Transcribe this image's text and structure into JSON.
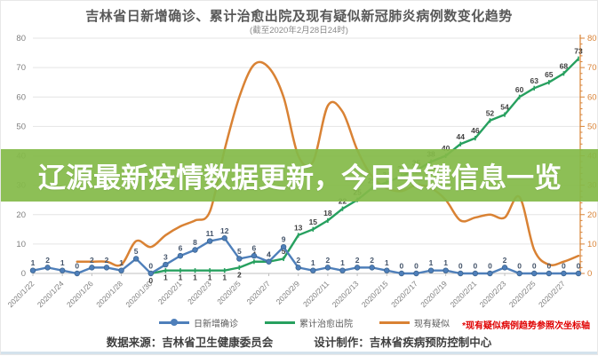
{
  "header": {
    "title": "吉林省日新增确诊、累计治愈出院及现有疑似新冠肺炎病例数变化趋势",
    "subtitle": "(截至2020年2月28日24时)"
  },
  "banner": {
    "text": "辽源最新疫情数据更新，今日关键信息一览",
    "bg": "rgba(132,186,73,0.93)"
  },
  "legend": {
    "items": [
      {
        "label": "日新增确诊",
        "color": "#4e7fba",
        "marker": "line-dot"
      },
      {
        "label": "累计治愈出院",
        "color": "#27a05f",
        "marker": "line"
      },
      {
        "label": "现有疑似",
        "color": "#d98234",
        "marker": "line"
      }
    ],
    "note": "*现有疑似病例趋势参照次坐标轴",
    "note_color": "#e00000"
  },
  "footer": {
    "source": "数据来源：吉林省卫生健康委员会",
    "design": "设计制作：吉林省疾病预防控制中心"
  },
  "chart_data": {
    "type": "line",
    "title": "吉林省日新增确诊、累计治愈出院及现有疑似新冠肺炎病例数变化趋势",
    "subtitle": "(截至2020年2月28日24时)",
    "x": [
      "2020/1/22",
      "2020/1/23",
      "2020/1/24",
      "2020/1/25",
      "2020/1/26",
      "2020/1/27",
      "2020/1/28",
      "2020/1/29",
      "2020/1/30",
      "2020/1/31",
      "2020/2/1",
      "2020/2/2",
      "2020/2/3",
      "2020/2/4",
      "2020/2/5",
      "2020/2/6",
      "2020/2/7",
      "2020/2/8",
      "2020/2/9",
      "2020/2/10",
      "2020/2/11",
      "2020/2/12",
      "2020/2/13",
      "2020/2/14",
      "2020/2/15",
      "2020/2/16",
      "2020/2/17",
      "2020/2/18",
      "2020/2/19",
      "2020/2/20",
      "2020/2/21",
      "2020/2/22",
      "2020/2/23",
      "2020/2/24",
      "2020/2/25",
      "2020/2/26",
      "2020/2/27",
      "2020/2/28"
    ],
    "x_tick_every": 2,
    "ylim": [
      0,
      80
    ],
    "y_tick_step": 10,
    "grid": true,
    "legend_position": "bottom",
    "secondary_axis_note": "现有疑似病例趋势参照次坐标轴",
    "series": [
      {
        "name": "现有疑似",
        "axis": "right",
        "color": "#d98234",
        "smooth": true,
        "markers": false,
        "labels": false,
        "values": [
          null,
          null,
          null,
          4,
          4,
          4,
          3,
          11,
          9,
          13,
          16,
          18,
          21,
          42,
          60,
          71,
          70,
          60,
          40,
          38,
          57,
          55,
          42,
          33,
          29,
          28,
          30,
          29,
          25,
          18,
          19,
          20,
          19,
          26,
          8,
          3,
          4,
          6
        ]
      },
      {
        "name": "累计治愈出院",
        "axis": "left",
        "color": "#27a05f",
        "smooth": false,
        "markers": true,
        "marker_shape": "tick",
        "labels": true,
        "label_color": "#3f3f3f",
        "values": [
          null,
          null,
          null,
          null,
          null,
          null,
          null,
          null,
          0,
          1,
          1,
          1,
          1,
          1,
          2,
          4,
          4,
          5,
          13,
          15,
          18,
          22,
          25,
          29,
          31,
          33,
          35,
          38,
          40,
          44,
          46,
          52,
          54,
          60,
          63,
          65,
          68,
          73
        ]
      },
      {
        "name": "日新增确诊",
        "axis": "left",
        "color": "#4e7fba",
        "smooth": false,
        "markers": true,
        "marker_shape": "dot",
        "labels": true,
        "label_color": "#44546a",
        "values": [
          1,
          2,
          1,
          0,
          2,
          2,
          1,
          5,
          0,
          3,
          6,
          8,
          11,
          12,
          5,
          6,
          4,
          9,
          2,
          1,
          2,
          1,
          2,
          2,
          1,
          0,
          0,
          1,
          1,
          0,
          0,
          0,
          2,
          0,
          0,
          0,
          0,
          0
        ]
      }
    ],
    "axis_colors": {
      "left_text": "#7f7f7f",
      "right_text": "#d98234",
      "right_line": "#d98234",
      "grid": "#e4e4e4",
      "x_axis": "#bfbfbf"
    }
  }
}
